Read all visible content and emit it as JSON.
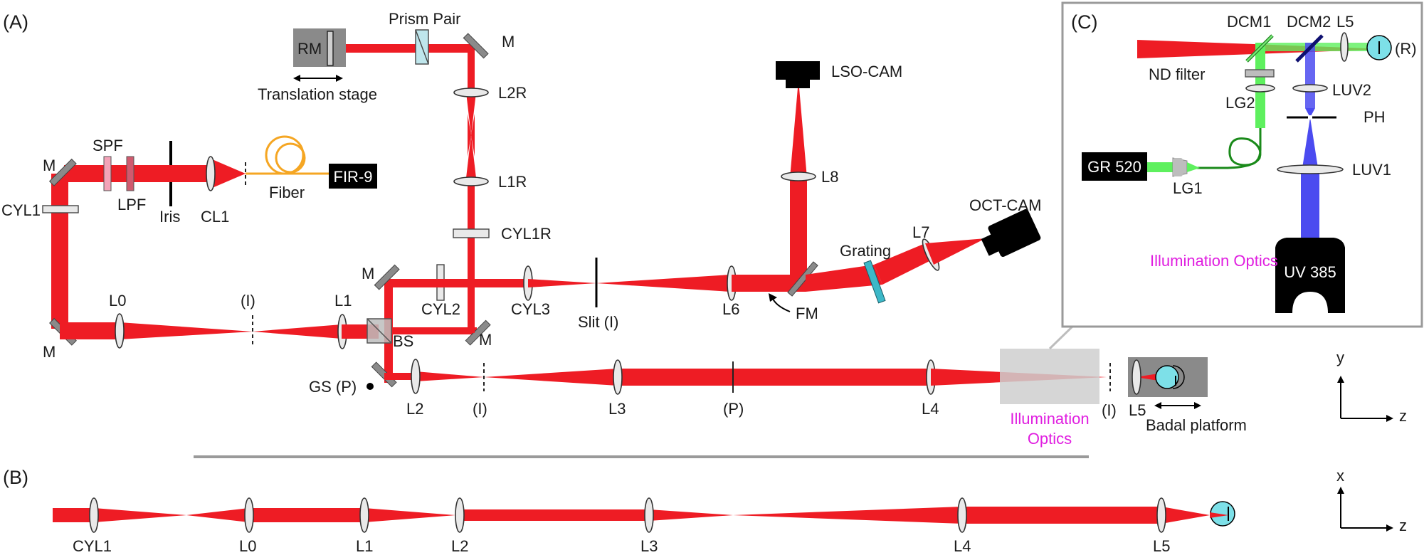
{
  "panels": {
    "a": "(A)",
    "b": "(B)",
    "c": "(C)"
  },
  "components": {
    "rm": "RM",
    "prism_pair": "Prism Pair",
    "translation_stage": "Translation stage",
    "m": "M",
    "l2r": "L2R",
    "l1r": "L1R",
    "cyl1r": "CYL1R",
    "spf": "SPF",
    "lpf": "LPF",
    "iris": "Iris",
    "cl1": "CL1",
    "fiber": "Fiber",
    "fir9": "FIR-9",
    "cyl1": "CYL1",
    "l0": "L0",
    "i": "(I)",
    "l1": "L1",
    "bs": "BS",
    "cyl2": "CYL2",
    "cyl3": "CYL3",
    "slit": "Slit (I)",
    "l6": "L6",
    "fm": "FM",
    "l8": "L8",
    "lso_cam": "LSO-CAM",
    "grating": "Grating",
    "l7": "L7",
    "oct_cam": "OCT-CAM",
    "gs": "GS (P)",
    "l2": "L2",
    "l3": "L3",
    "p": "(P)",
    "l4": "L4",
    "illum_line1": "Illumination",
    "illum_line2": "Optics",
    "l5": "L5",
    "badal": "Badal platform",
    "x": "x",
    "y": "y",
    "z": "z"
  },
  "inset": {
    "dcm1": "DCM1",
    "dcm2": "DCM2",
    "l5": "L5",
    "r": "(R)",
    "nd_filter": "ND filter",
    "luv2": "LUV2",
    "lg2": "LG2",
    "ph": "PH",
    "gr520": "GR 520",
    "lg1": "LG1",
    "luv1": "LUV1",
    "illum": "Illumination Optics",
    "uv385": "UV 385"
  },
  "colors": {
    "beam": "#ee1c24",
    "green": "#5ef05e",
    "blue": "#4b4bf0",
    "magenta": "#e01ee0",
    "cyan": "#7de0e8",
    "fiber": "#f5a623"
  }
}
